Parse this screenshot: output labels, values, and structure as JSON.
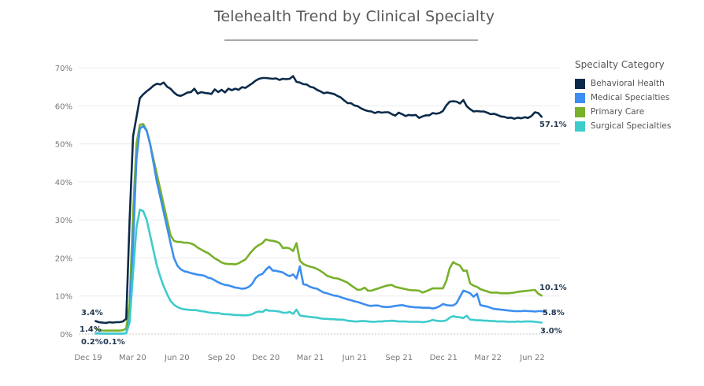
{
  "chart_data": {
    "type": "line",
    "title": "Telehealth Trend by Clinical Specialty",
    "xlabel": "",
    "ylabel": "",
    "ylim": [
      0,
      70
    ],
    "y_ticks": [
      "0%",
      "10%",
      "20%",
      "30%",
      "40%",
      "50%",
      "60%",
      "70%"
    ],
    "y_tick_values": [
      0,
      10,
      20,
      30,
      40,
      50,
      60,
      70
    ],
    "x_ticks": [
      "Dec 19",
      "Mar 20",
      "Jun 20",
      "Sep 20",
      "Dec 20",
      "Mar 21",
      "Jun 21",
      "Sep 21",
      "Dec 21",
      "Mar 22",
      "Jun 22"
    ],
    "x_tick_months": [
      0,
      3,
      6,
      9,
      12,
      15,
      18,
      21,
      24,
      27,
      30
    ],
    "grid": true,
    "legend_title": "Specialty Category",
    "legend_position": "right",
    "x_months_start": 0.5,
    "x_months_step": 0.23,
    "series": [
      {
        "name": "Behavioral Health",
        "color": "#0b2a4a",
        "start_label": "3.4%",
        "end_label": "57.1%",
        "values": [
          3.4,
          3.1,
          3.0,
          2.9,
          3.1,
          3.0,
          3.1,
          3.1,
          3.3,
          4.0,
          30,
          52,
          57,
          62,
          63,
          63.8,
          64.5,
          65.3,
          65.8,
          65.6,
          66.1,
          65,
          64.5,
          63.5,
          62.8,
          62.6,
          63,
          63.5,
          63.6,
          64.5,
          63.2,
          63.6,
          63.4,
          63.3,
          63.1,
          64.3,
          63.6,
          64.2,
          63.5,
          64.5,
          64.1,
          64.5,
          64.2,
          64.9,
          64.7,
          65.3,
          65.9,
          66.6,
          67.1,
          67.3,
          67.3,
          67.2,
          67.1,
          67.2,
          66.8,
          67.1,
          67,
          67.1,
          67.8,
          66.3,
          66.1,
          65.7,
          65.6,
          65,
          64.8,
          64.2,
          63.8,
          63.3,
          63.5,
          63.3,
          63.1,
          62.6,
          62.2,
          61.4,
          60.7,
          60.7,
          60.1,
          59.9,
          59.3,
          58.9,
          58.6,
          58.5,
          58.1,
          58.4,
          58.2,
          58.3,
          58.3,
          57.8,
          57.4,
          58.2,
          57.8,
          57.3,
          57.6,
          57.5,
          57.6,
          56.8,
          57.2,
          57.5,
          57.5,
          58.1,
          57.9,
          58.1,
          58.6,
          60.1,
          61.1,
          61.2,
          61.1,
          60.6,
          61.5,
          59.9,
          59.1,
          58.5,
          58.6,
          58.5,
          58.5,
          58.2,
          57.8,
          57.9,
          57.6,
          57.2,
          57.1,
          56.8,
          56.9,
          56.6,
          56.9,
          56.7,
          57,
          56.8,
          57.3,
          58.3,
          58.1,
          57.1
        ]
      },
      {
        "name": "Medical Specialties",
        "color": "#3d8ef0",
        "start_label": "0.2%",
        "end_label": "5.8%",
        "values": [
          0.2,
          0.2,
          0.1,
          0.1,
          0.1,
          0.1,
          0.1,
          0.1,
          0.1,
          0.2,
          4,
          24,
          46,
          54,
          54.7,
          53.4,
          50,
          45,
          40,
          36,
          32,
          28,
          24,
          20,
          18,
          17,
          16.5,
          16.3,
          16,
          15.8,
          15.6,
          15.5,
          15.3,
          14.8,
          14.6,
          14.1,
          13.6,
          13.2,
          12.9,
          12.8,
          12.5,
          12.2,
          12.1,
          11.9,
          12,
          12.4,
          13.2,
          14.7,
          15.5,
          15.8,
          16.9,
          17.7,
          16.7,
          16.6,
          16.4,
          16.2,
          15.6,
          15.2,
          15.7,
          14.6,
          17.8,
          13.1,
          12.9,
          12.4,
          12.1,
          11.9,
          11.4,
          10.9,
          10.7,
          10.4,
          10.1,
          10,
          9.7,
          9.4,
          9.1,
          8.9,
          8.6,
          8.4,
          8.1,
          7.8,
          7.5,
          7.4,
          7.5,
          7.5,
          7.2,
          7.1,
          7.1,
          7.2,
          7.4,
          7.5,
          7.6,
          7.4,
          7.2,
          7.1,
          7.0,
          7.0,
          6.9,
          6.9,
          6.9,
          6.7,
          6.9,
          7.3,
          7.9,
          7.6,
          7.5,
          7.5,
          8.1,
          9.8,
          11.4,
          11.1,
          10.7,
          9.8,
          10.6,
          7.6,
          7.4,
          7.2,
          6.9,
          6.6,
          6.5,
          6.4,
          6.3,
          6.2,
          6.1,
          6.0,
          6.0,
          6.0,
          6.1,
          6.0,
          6.0,
          5.9,
          6.0,
          6.0,
          5.8
        ]
      },
      {
        "name": "Primary Care",
        "color": "#78b02a",
        "start_label": "1.4%",
        "end_label": "10.1%",
        "values": [
          1.4,
          1.0,
          0.9,
          0.9,
          0.9,
          0.9,
          0.9,
          0.9,
          1.0,
          1.4,
          8,
          32,
          50,
          55,
          55.2,
          53.5,
          50,
          46,
          42,
          38,
          34,
          30,
          26,
          24.5,
          24.2,
          24.2,
          24.0,
          24.0,
          23.8,
          23.4,
          22.7,
          22.2,
          21.7,
          21.3,
          20.6,
          19.9,
          19.4,
          18.8,
          18.5,
          18.4,
          18.4,
          18.3,
          18.6,
          19.1,
          19.6,
          20.8,
          21.9,
          22.8,
          23.4,
          23.9,
          24.9,
          24.6,
          24.5,
          24.3,
          23.9,
          22.6,
          22.7,
          22.5,
          21.8,
          23.9,
          19.3,
          18.4,
          18.0,
          17.7,
          17.5,
          17.1,
          16.6,
          16.0,
          15.3,
          15.0,
          14.7,
          14.6,
          14.3,
          13.9,
          13.5,
          12.8,
          12.2,
          11.6,
          11.7,
          12.2,
          11.4,
          11.4,
          11.7,
          12.0,
          12.3,
          12.6,
          12.8,
          12.9,
          12.4,
          12.2,
          12.0,
          11.8,
          11.6,
          11.5,
          11.5,
          11.4,
          10.9,
          11.2,
          11.6,
          12.0,
          12.0,
          12.0,
          12.0,
          14.0,
          17.3,
          18.9,
          18.4,
          18.0,
          16.6,
          16.7,
          13.3,
          12.7,
          12.4,
          11.8,
          11.5,
          11.2,
          10.9,
          10.9,
          10.9,
          10.7,
          10.7,
          10.7,
          10.8,
          10.9,
          11.1,
          11.2,
          11.3,
          11.4,
          11.5,
          11.6,
          10.6,
          10.1
        ]
      },
      {
        "name": "Surgical Specialties",
        "color": "#3ecbcb",
        "start_label": "0.1%",
        "end_label": "3.0%",
        "values": [
          0.1,
          0.1,
          0.1,
          0.1,
          0.1,
          0.1,
          0.1,
          0.1,
          0.1,
          0.2,
          3,
          16,
          28,
          32.7,
          32.3,
          30,
          26,
          22,
          18,
          15,
          12.5,
          10.5,
          8.7,
          7.7,
          7.1,
          6.7,
          6.5,
          6.4,
          6.3,
          6.3,
          6.2,
          6.0,
          5.9,
          5.7,
          5.6,
          5.5,
          5.5,
          5.3,
          5.2,
          5.2,
          5.1,
          5.0,
          5.0,
          4.9,
          4.9,
          5.0,
          5.2,
          5.7,
          5.9,
          5.8,
          6.4,
          6.1,
          6.1,
          6.0,
          5.9,
          5.6,
          5.6,
          5.8,
          5.3,
          6.4,
          4.9,
          4.7,
          4.6,
          4.5,
          4.4,
          4.3,
          4.1,
          4.0,
          4.0,
          3.9,
          3.9,
          3.8,
          3.8,
          3.7,
          3.5,
          3.4,
          3.3,
          3.3,
          3.4,
          3.4,
          3.3,
          3.2,
          3.2,
          3.3,
          3.3,
          3.4,
          3.4,
          3.5,
          3.4,
          3.3,
          3.3,
          3.3,
          3.2,
          3.2,
          3.2,
          3.2,
          3.1,
          3.2,
          3.4,
          3.7,
          3.5,
          3.4,
          3.4,
          3.6,
          4.3,
          4.7,
          4.5,
          4.4,
          4.2,
          4.8,
          3.8,
          3.7,
          3.6,
          3.6,
          3.5,
          3.5,
          3.4,
          3.4,
          3.3,
          3.3,
          3.3,
          3.2,
          3.2,
          3.2,
          3.3,
          3.2,
          3.3,
          3.3,
          3.3,
          3.2,
          3.1,
          3.0
        ]
      }
    ]
  }
}
